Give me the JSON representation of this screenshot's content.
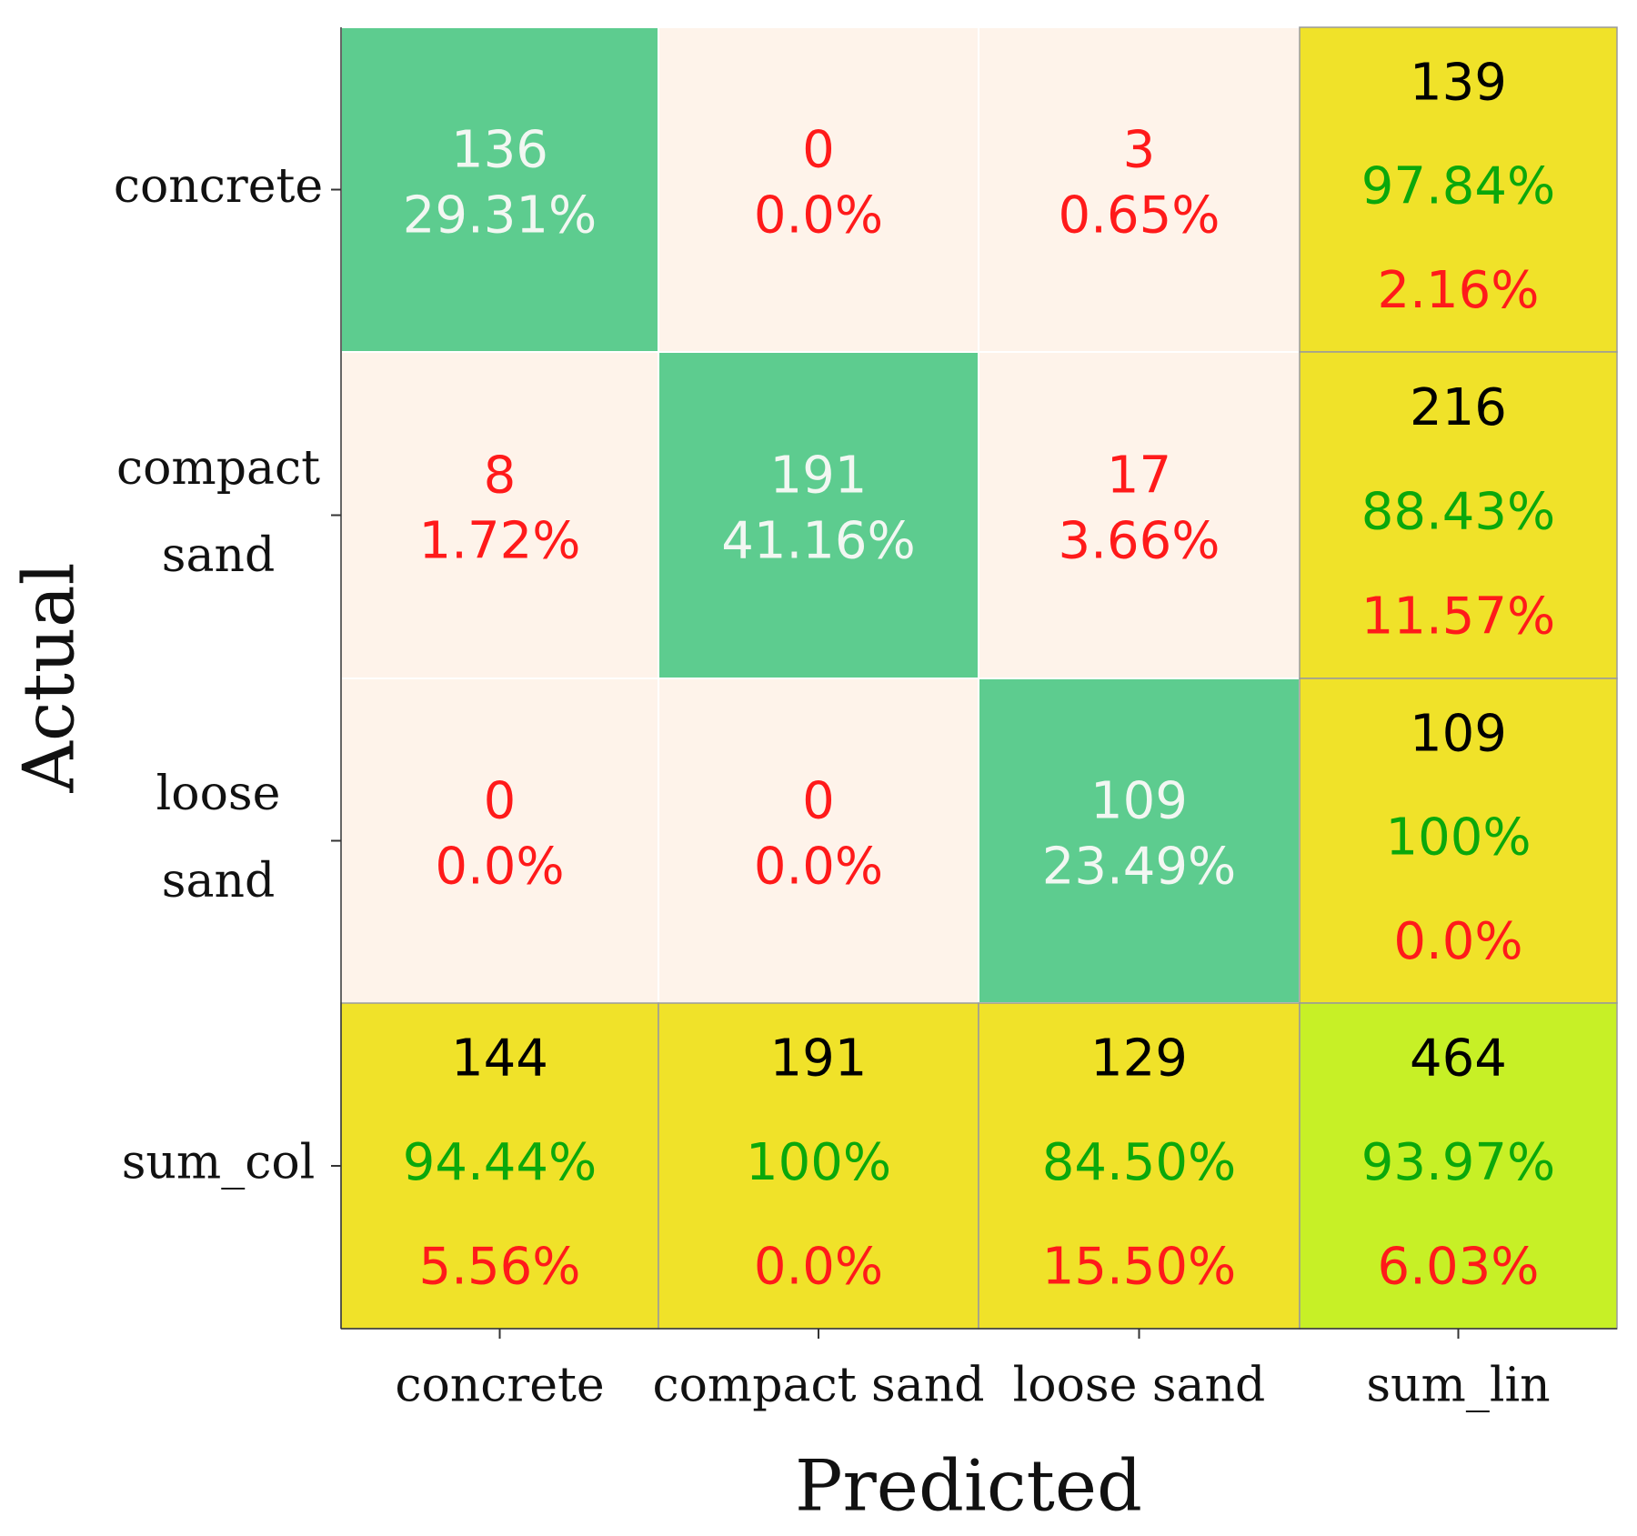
{
  "chart_data": {
    "type": "heatmap",
    "xlabel": "Predicted",
    "ylabel": "Actual",
    "x_tick_labels": [
      "concrete",
      "compact sand",
      "loose sand",
      "sum_lin"
    ],
    "y_tick_labels": [
      [
        "concrete"
      ],
      [
        "compact",
        "sand"
      ],
      [
        "loose",
        "sand"
      ],
      [
        "sum_col"
      ]
    ],
    "colors": {
      "diagonal": "#5dcc8f",
      "off_diagonal": "#fef3ea",
      "summary": "#f0e229",
      "total": "#c7f026",
      "diag_text": "#f2f7f2",
      "error_text": "#ff1a1a",
      "count_text": "#000000",
      "correct_text": "#0ba80b"
    },
    "rows": [
      {
        "actual": "concrete",
        "cells": [
          {
            "count": "136",
            "percent": "29.31%"
          },
          {
            "count": "0",
            "percent": "0.0%"
          },
          {
            "count": "3",
            "percent": "0.65%"
          }
        ],
        "sum": {
          "count": "139",
          "correct": "97.84%",
          "error": "2.16%"
        }
      },
      {
        "actual": "compact sand",
        "cells": [
          {
            "count": "8",
            "percent": "1.72%"
          },
          {
            "count": "191",
            "percent": "41.16%"
          },
          {
            "count": "17",
            "percent": "3.66%"
          }
        ],
        "sum": {
          "count": "216",
          "correct": "88.43%",
          "error": "11.57%"
        }
      },
      {
        "actual": "loose sand",
        "cells": [
          {
            "count": "0",
            "percent": "0.0%"
          },
          {
            "count": "0",
            "percent": "0.0%"
          },
          {
            "count": "109",
            "percent": "23.49%"
          }
        ],
        "sum": {
          "count": "109",
          "correct": "100%",
          "error": "0.0%"
        }
      }
    ],
    "sum_col": [
      {
        "count": "144",
        "correct": "94.44%",
        "error": "5.56%"
      },
      {
        "count": "191",
        "correct": "100%",
        "error": "0.0%"
      },
      {
        "count": "129",
        "correct": "84.50%",
        "error": "15.50%"
      }
    ],
    "total": {
      "count": "464",
      "correct": "93.97%",
      "error": "6.03%"
    }
  }
}
